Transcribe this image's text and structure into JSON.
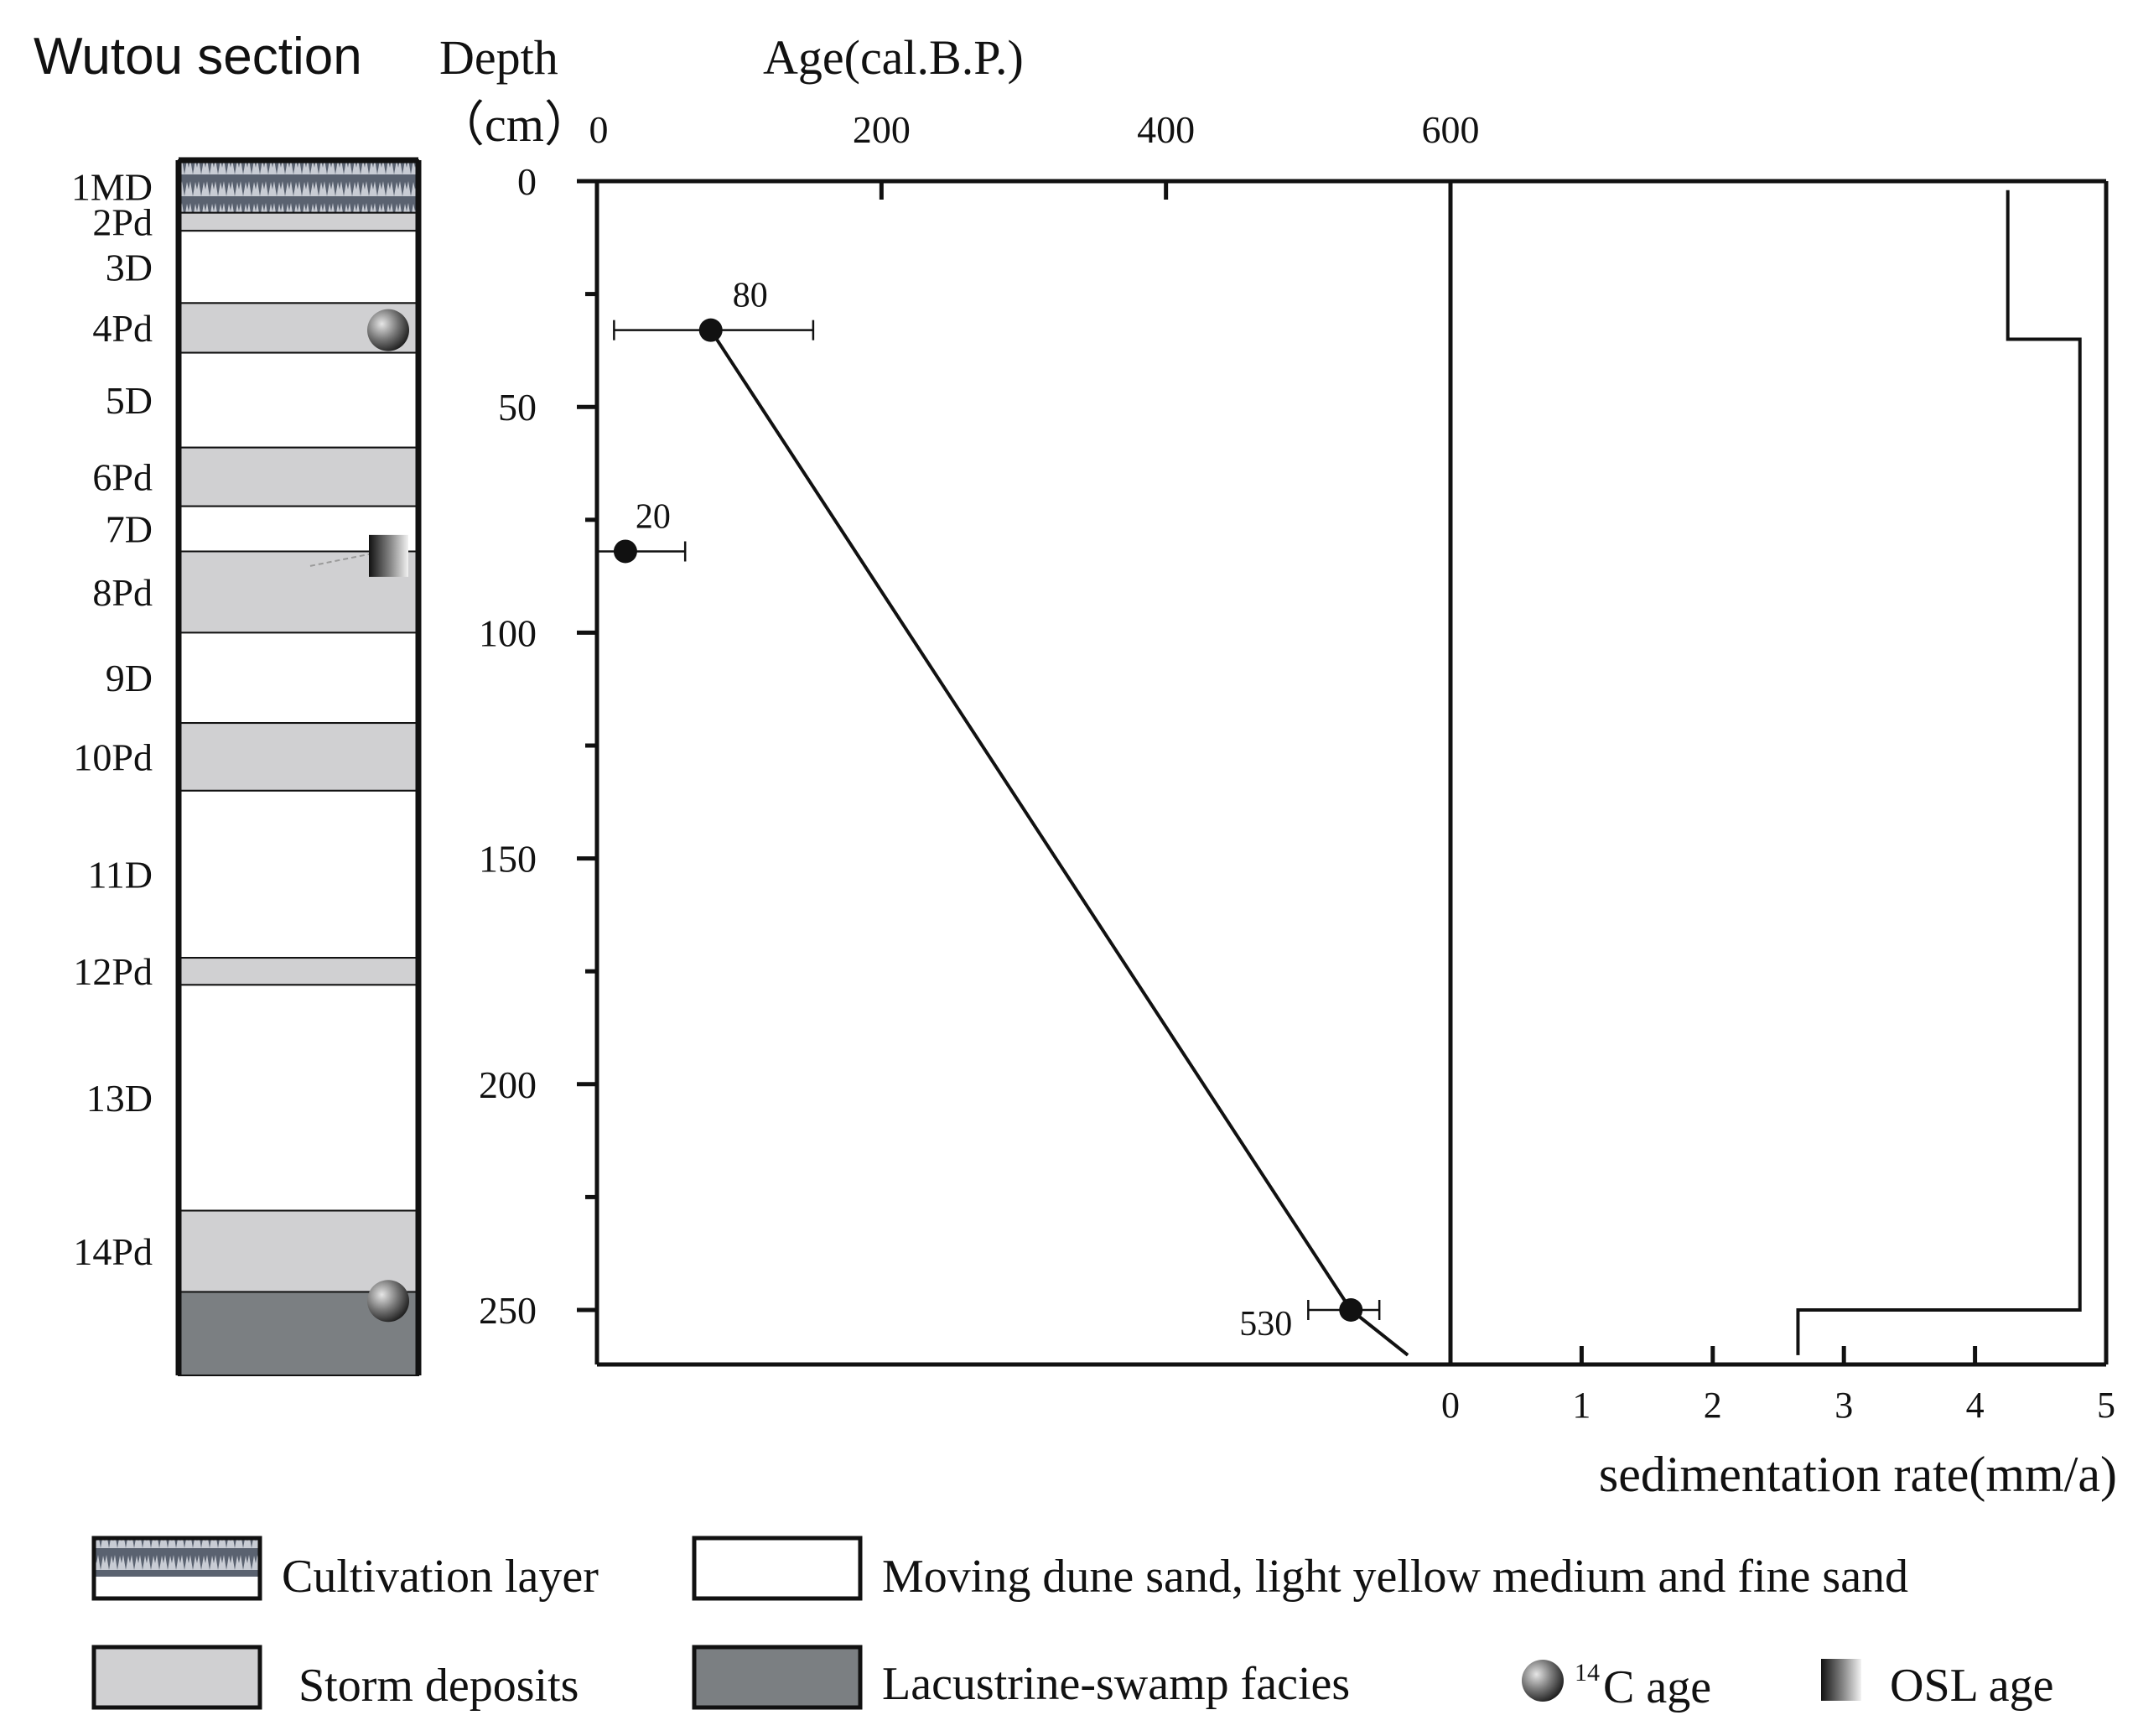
{
  "title": "Wutou section",
  "depth_label_line1": "Depth",
  "depth_label_line2": "（cm）",
  "age_axis_label": "Age(cal.B.P.)",
  "rate_axis_label": "sedimentation rate(mm/a)",
  "colors": {
    "storm": "#d0d0d2",
    "lacustrine": "#7b7f82",
    "line": "#111111"
  },
  "section": {
    "layers": [
      {
        "label": "1MD",
        "type": "cultivation",
        "top": 0,
        "bottom": 7
      },
      {
        "label": "2Pd",
        "type": "storm",
        "top": 7,
        "bottom": 11
      },
      {
        "label": "3D",
        "type": "dune",
        "top": 11,
        "bottom": 27
      },
      {
        "label": "4Pd",
        "type": "storm",
        "top": 27,
        "bottom": 38
      },
      {
        "label": "5D",
        "type": "dune",
        "top": 38,
        "bottom": 59
      },
      {
        "label": "6Pd",
        "type": "storm",
        "top": 59,
        "bottom": 72
      },
      {
        "label": "7D",
        "type": "dune",
        "top": 72,
        "bottom": 82
      },
      {
        "label": "8Pd",
        "type": "storm",
        "top": 82,
        "bottom": 100
      },
      {
        "label": "9D",
        "type": "dune",
        "top": 100,
        "bottom": 120
      },
      {
        "label": "10Pd",
        "type": "storm",
        "top": 120,
        "bottom": 135
      },
      {
        "label": "11D",
        "type": "dune",
        "top": 135,
        "bottom": 172
      },
      {
        "label": "12Pd",
        "type": "storm",
        "top": 172,
        "bottom": 178
      },
      {
        "label": "13D",
        "type": "dune",
        "top": 178,
        "bottom": 228
      },
      {
        "label": "14Pd",
        "type": "storm",
        "top": 228,
        "bottom": 246
      },
      {
        "label": "",
        "type": "lacustrine",
        "top": 246,
        "bottom": 265
      }
    ],
    "markers": [
      {
        "type": "14C",
        "depth": 33
      },
      {
        "type": "OSL",
        "depth": 83
      },
      {
        "type": "14C",
        "depth": 248
      }
    ]
  },
  "chart_data": [
    {
      "type": "line",
      "xlabel": "Age(cal.B.P.)",
      "ylabel": "Depth （cm）",
      "xlim": [
        0,
        600
      ],
      "ylim": [
        0,
        260
      ],
      "x_ticks": [
        0,
        200,
        400,
        600
      ],
      "y_ticks": [
        0,
        50,
        100,
        150,
        200,
        250
      ],
      "y_inverted": true,
      "series": [
        {
          "type": "line",
          "points": [
            {
              "age": 80,
              "depth": 33
            },
            {
              "age": 530,
              "depth": 250
            },
            {
              "age": 570,
              "depth": 260
            }
          ]
        },
        {
          "type": "scatter",
          "points": [
            {
              "age": 80,
              "depth": 33,
              "label": "80",
              "err_low": 12,
              "err_high": 152
            },
            {
              "age": 20,
              "depth": 82,
              "label": "20",
              "err_low": 0,
              "err_high": 62
            },
            {
              "age": 530,
              "depth": 250,
              "label": "530",
              "err_low": 500,
              "err_high": 550
            }
          ]
        }
      ]
    },
    {
      "type": "line",
      "xlabel": "sedimentation rate(mm/a)",
      "xlim": [
        0,
        5
      ],
      "x_ticks": [
        0,
        1,
        2,
        3,
        4,
        5
      ],
      "ylim": [
        0,
        260
      ],
      "series": [
        {
          "points": [
            {
              "rate": 4.25,
              "depth": 2
            },
            {
              "rate": 4.25,
              "depth": 35
            },
            {
              "rate": 4.8,
              "depth": 35
            },
            {
              "rate": 4.8,
              "depth": 250
            },
            {
              "rate": 2.65,
              "depth": 250
            },
            {
              "rate": 2.65,
              "depth": 260
            }
          ]
        }
      ]
    }
  ],
  "legend": {
    "cultivation": "Cultivation layer",
    "dune": "Moving dune sand, light yellow medium and fine sand",
    "storm": "Storm deposits",
    "lacustrine": "Lacustrine-swamp facies",
    "c14_sup": "14",
    "c14_text": "C age",
    "osl": "OSL age"
  }
}
